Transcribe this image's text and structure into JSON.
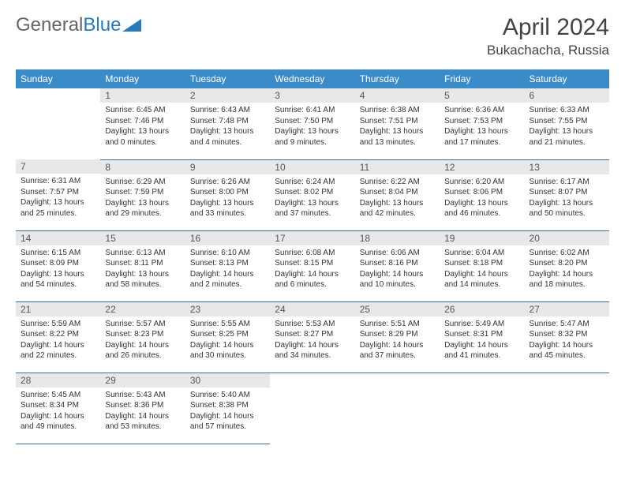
{
  "logo": {
    "part1": "General",
    "part2": "Blue"
  },
  "title": "April 2024",
  "location": "Bukachacha, Russia",
  "weekdays": [
    "Sunday",
    "Monday",
    "Tuesday",
    "Wednesday",
    "Thursday",
    "Friday",
    "Saturday"
  ],
  "colors": {
    "header_bg": "#3b8bc9",
    "header_text": "#ffffff",
    "daynum_bg": "#e8e8e8",
    "border": "#3b6d95",
    "logo_accent": "#2a7ab9"
  },
  "weeks": [
    [
      null,
      {
        "d": "1",
        "sr": "6:45 AM",
        "ss": "7:46 PM",
        "dl": "13 hours and 0 minutes."
      },
      {
        "d": "2",
        "sr": "6:43 AM",
        "ss": "7:48 PM",
        "dl": "13 hours and 4 minutes."
      },
      {
        "d": "3",
        "sr": "6:41 AM",
        "ss": "7:50 PM",
        "dl": "13 hours and 9 minutes."
      },
      {
        "d": "4",
        "sr": "6:38 AM",
        "ss": "7:51 PM",
        "dl": "13 hours and 13 minutes."
      },
      {
        "d": "5",
        "sr": "6:36 AM",
        "ss": "7:53 PM",
        "dl": "13 hours and 17 minutes."
      },
      {
        "d": "6",
        "sr": "6:33 AM",
        "ss": "7:55 PM",
        "dl": "13 hours and 21 minutes."
      }
    ],
    [
      {
        "d": "7",
        "sr": "6:31 AM",
        "ss": "7:57 PM",
        "dl": "13 hours and 25 minutes."
      },
      {
        "d": "8",
        "sr": "6:29 AM",
        "ss": "7:59 PM",
        "dl": "13 hours and 29 minutes."
      },
      {
        "d": "9",
        "sr": "6:26 AM",
        "ss": "8:00 PM",
        "dl": "13 hours and 33 minutes."
      },
      {
        "d": "10",
        "sr": "6:24 AM",
        "ss": "8:02 PM",
        "dl": "13 hours and 37 minutes."
      },
      {
        "d": "11",
        "sr": "6:22 AM",
        "ss": "8:04 PM",
        "dl": "13 hours and 42 minutes."
      },
      {
        "d": "12",
        "sr": "6:20 AM",
        "ss": "8:06 PM",
        "dl": "13 hours and 46 minutes."
      },
      {
        "d": "13",
        "sr": "6:17 AM",
        "ss": "8:07 PM",
        "dl": "13 hours and 50 minutes."
      }
    ],
    [
      {
        "d": "14",
        "sr": "6:15 AM",
        "ss": "8:09 PM",
        "dl": "13 hours and 54 minutes."
      },
      {
        "d": "15",
        "sr": "6:13 AM",
        "ss": "8:11 PM",
        "dl": "13 hours and 58 minutes."
      },
      {
        "d": "16",
        "sr": "6:10 AM",
        "ss": "8:13 PM",
        "dl": "14 hours and 2 minutes."
      },
      {
        "d": "17",
        "sr": "6:08 AM",
        "ss": "8:15 PM",
        "dl": "14 hours and 6 minutes."
      },
      {
        "d": "18",
        "sr": "6:06 AM",
        "ss": "8:16 PM",
        "dl": "14 hours and 10 minutes."
      },
      {
        "d": "19",
        "sr": "6:04 AM",
        "ss": "8:18 PM",
        "dl": "14 hours and 14 minutes."
      },
      {
        "d": "20",
        "sr": "6:02 AM",
        "ss": "8:20 PM",
        "dl": "14 hours and 18 minutes."
      }
    ],
    [
      {
        "d": "21",
        "sr": "5:59 AM",
        "ss": "8:22 PM",
        "dl": "14 hours and 22 minutes."
      },
      {
        "d": "22",
        "sr": "5:57 AM",
        "ss": "8:23 PM",
        "dl": "14 hours and 26 minutes."
      },
      {
        "d": "23",
        "sr": "5:55 AM",
        "ss": "8:25 PM",
        "dl": "14 hours and 30 minutes."
      },
      {
        "d": "24",
        "sr": "5:53 AM",
        "ss": "8:27 PM",
        "dl": "14 hours and 34 minutes."
      },
      {
        "d": "25",
        "sr": "5:51 AM",
        "ss": "8:29 PM",
        "dl": "14 hours and 37 minutes."
      },
      {
        "d": "26",
        "sr": "5:49 AM",
        "ss": "8:31 PM",
        "dl": "14 hours and 41 minutes."
      },
      {
        "d": "27",
        "sr": "5:47 AM",
        "ss": "8:32 PM",
        "dl": "14 hours and 45 minutes."
      }
    ],
    [
      {
        "d": "28",
        "sr": "5:45 AM",
        "ss": "8:34 PM",
        "dl": "14 hours and 49 minutes."
      },
      {
        "d": "29",
        "sr": "5:43 AM",
        "ss": "8:36 PM",
        "dl": "14 hours and 53 minutes."
      },
      {
        "d": "30",
        "sr": "5:40 AM",
        "ss": "8:38 PM",
        "dl": "14 hours and 57 minutes."
      },
      null,
      null,
      null,
      null
    ]
  ],
  "labels": {
    "sunrise": "Sunrise:",
    "sunset": "Sunset:",
    "daylight": "Daylight:"
  }
}
